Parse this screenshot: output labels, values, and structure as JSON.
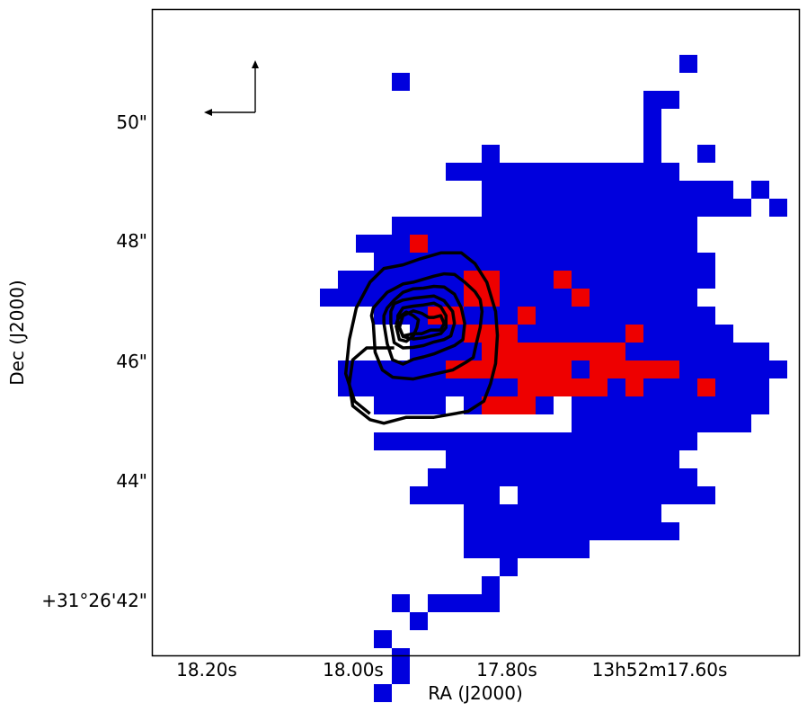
{
  "chart_data": {
    "type": "heatmap",
    "title": "",
    "xlabel": "RA (J2000)",
    "ylabel": "Dec (J2000)",
    "x_ticks": [
      "18.20s",
      "18.00s",
      "17.80s",
      "13h52m17.60s"
    ],
    "y_ticks": [
      "50\"",
      "48\"",
      "46\"",
      "44\"",
      "+31°26'42\""
    ],
    "grid": false,
    "legend": "none",
    "pixel_map": {
      "cell_arcsec": 0.3,
      "grid_columns": 36,
      "grid_rows": 36,
      "first_row_dec_offset_arcsec": 9.5,
      "first_column": 3,
      "rows": [
        "..........................1",
        "..........1",
        "........................11",
        "........................1",
        "........................1",
        "...............1........1..1",
        ".............1111111111111",
        "...............11111111111111.1",
        "...............111111111111111.1",
        "..........11111111111111111",
        "........1112111111111111111",
        ".........1111111111111111111",
        ".......111111122111211111111",
        "......111111112211112111111",
        ".........1112211121111111111",
        "...........111222111111211111",
        "...........11112222222211111111",
        ".......1111112222222122222111111",
        ".......111111111122222121112111",
        ".........1111.12221.11111111111",
        "....................1111111111",
        ".........111111111111111111",
        ".............1111111111111",
        "............111111111111111",
        "...........11111.11111111111",
        "..............11111111111",
        "..............111111111111",
        "..............1111111",
        "................1",
        "...............1",
        "..........1.1111",
        "...........1",
        ".........1",
        "..........1",
        "..........1",
        ".........1"
      ],
      "colors": {
        "1": "#0000dd",
        "2": "#ee0000"
      }
    },
    "contours": [
      [
        [
          -4.44,
          46.62
        ],
        [
          -4.5,
          46.75
        ],
        [
          -4.44,
          46.88
        ],
        [
          -4.21,
          47.01
        ],
        [
          -3.98,
          47.14
        ],
        [
          -3.75,
          47.2
        ],
        [
          -3.46,
          47.28
        ],
        [
          -3.12,
          47.31
        ],
        [
          -2.78,
          47.36
        ],
        [
          -2.44,
          47.41
        ],
        [
          -2.1,
          47.45
        ],
        [
          -1.76,
          47.44
        ],
        [
          -1.42,
          47.31
        ],
        [
          -1.08,
          47.15
        ],
        [
          -0.91,
          47.02
        ],
        [
          -0.85,
          46.82
        ],
        [
          -0.91,
          46.55
        ],
        [
          -1.03,
          46.3
        ],
        [
          -1.14,
          46.05
        ],
        [
          -1.38,
          45.97
        ],
        [
          -1.82,
          45.84
        ],
        [
          -2.44,
          45.77
        ],
        [
          -3.12,
          45.69
        ],
        [
          -3.8,
          45.72
        ],
        [
          -4.14,
          45.84
        ],
        [
          -4.38,
          46.14
        ],
        [
          -4.44,
          46.62
        ]
      ],
      [
        [
          -4.09,
          46.62
        ],
        [
          -4.09,
          46.75
        ],
        [
          -3.98,
          46.88
        ],
        [
          -3.75,
          47.01
        ],
        [
          -3.46,
          47.14
        ],
        [
          -3.12,
          47.2
        ],
        [
          -2.78,
          47.21
        ],
        [
          -2.44,
          47.24
        ],
        [
          -2.1,
          47.23
        ],
        [
          -1.76,
          47.11
        ],
        [
          -1.53,
          46.88
        ],
        [
          -1.42,
          46.62
        ],
        [
          -1.48,
          46.35
        ],
        [
          -1.76,
          46.25
        ],
        [
          -2.1,
          46.18
        ],
        [
          -2.44,
          46.11
        ],
        [
          -2.78,
          46.06
        ],
        [
          -3.12,
          46.02
        ],
        [
          -3.46,
          45.94
        ],
        [
          -3.8,
          46.01
        ],
        [
          -3.98,
          46.28
        ],
        [
          -4.09,
          46.62
        ]
      ],
      [
        [
          -3.86,
          46.62
        ],
        [
          -3.86,
          46.82
        ],
        [
          -3.75,
          46.95
        ],
        [
          -3.46,
          47.01
        ],
        [
          -3.12,
          47.04
        ],
        [
          -2.78,
          47.06
        ],
        [
          -2.44,
          47.08
        ],
        [
          -2.1,
          47.0
        ],
        [
          -1.82,
          46.82
        ],
        [
          -1.76,
          46.62
        ],
        [
          -1.88,
          46.41
        ],
        [
          -2.1,
          46.35
        ],
        [
          -2.44,
          46.31
        ],
        [
          -2.78,
          46.25
        ],
        [
          -3.12,
          46.22
        ],
        [
          -3.46,
          46.21
        ],
        [
          -3.75,
          46.3
        ],
        [
          -3.86,
          46.62
        ]
      ],
      [
        [
          -3.63,
          46.62
        ],
        [
          -3.63,
          46.75
        ],
        [
          -3.46,
          46.88
        ],
        [
          -3.12,
          46.91
        ],
        [
          -2.78,
          46.93
        ],
        [
          -2.44,
          46.96
        ],
        [
          -2.21,
          46.9
        ],
        [
          -2.04,
          46.75
        ],
        [
          -2.04,
          46.55
        ],
        [
          -2.21,
          46.45
        ],
        [
          -2.44,
          46.42
        ],
        [
          -2.78,
          46.38
        ],
        [
          -3.12,
          46.36
        ],
        [
          -3.46,
          46.4
        ],
        [
          -3.63,
          46.62
        ]
      ],
      [
        [
          -3.58,
          46.55
        ],
        [
          -3.46,
          46.75
        ],
        [
          -3.12,
          46.83
        ],
        [
          -2.84,
          46.79
        ],
        [
          -2.61,
          46.72
        ],
        [
          -2.44,
          46.72
        ],
        [
          -2.21,
          46.75
        ],
        [
          -2.1,
          46.62
        ],
        [
          -2.21,
          46.51
        ],
        [
          -2.55,
          46.51
        ],
        [
          -2.84,
          46.45
        ],
        [
          -3.12,
          46.45
        ],
        [
          -3.46,
          46.41
        ],
        [
          -3.58,
          46.55
        ]
      ],
      [
        [
          -3.69,
          46.59
        ],
        [
          -3.63,
          46.69
        ],
        [
          -3.52,
          46.75
        ],
        [
          -3.35,
          46.81
        ],
        [
          -3.12,
          46.75
        ],
        [
          -2.95,
          46.68
        ],
        [
          -3.0,
          46.55
        ],
        [
          -3.12,
          46.41
        ],
        [
          -3.35,
          46.32
        ],
        [
          -3.58,
          46.35
        ],
        [
          -3.69,
          46.59
        ]
      ],
      [
        [
          -3.75,
          46.21
        ],
        [
          -4.66,
          46.21
        ],
        [
          -5.12,
          46.01
        ],
        [
          -5.23,
          45.61
        ],
        [
          -5.12,
          45.24
        ],
        [
          -4.55,
          45.01
        ],
        [
          -4.09,
          44.95
        ],
        [
          -3.35,
          45.05
        ],
        [
          -2.44,
          45.05
        ],
        [
          -1.31,
          45.15
        ],
        [
          -0.79,
          45.32
        ],
        [
          -0.57,
          45.61
        ],
        [
          -0.4,
          45.95
        ],
        [
          -0.34,
          46.42
        ],
        [
          -0.4,
          46.82
        ],
        [
          -0.69,
          47.31
        ],
        [
          -1.08,
          47.62
        ],
        [
          -1.53,
          47.8
        ],
        [
          -2.21,
          47.8
        ],
        [
          -2.89,
          47.7
        ],
        [
          -3.46,
          47.6
        ],
        [
          -4.09,
          47.54
        ],
        [
          -4.55,
          47.31
        ],
        [
          -5.0,
          46.88
        ],
        [
          -5.23,
          46.35
        ],
        [
          -5.35,
          45.78
        ],
        [
          -5.06,
          45.32
        ],
        [
          -4.55,
          45.11
        ]
      ]
    ],
    "orientation_arrows": {
      "north": true,
      "east": true
    }
  }
}
